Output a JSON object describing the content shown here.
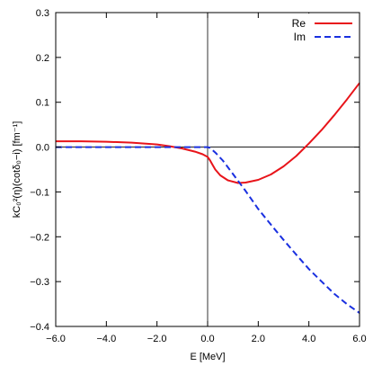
{
  "chart_data": {
    "type": "line",
    "xlabel": "E [MeV]",
    "ylabel": "kC₀²(η)(cotδ₀−i) [fm⁻¹]",
    "xlim": [
      -6.0,
      6.0
    ],
    "ylim": [
      -0.4,
      0.3
    ],
    "x_ticks": [
      -6.0,
      -4.0,
      -2.0,
      0.0,
      2.0,
      4.0,
      6.0
    ],
    "x_tick_labels": [
      "−6.0",
      "−4.0",
      "−2.0",
      "0.0",
      "2.0",
      "4.0",
      "6.0"
    ],
    "y_ticks": [
      -0.4,
      -0.3,
      -0.2,
      -0.1,
      0.0,
      0.1,
      0.2,
      0.3
    ],
    "y_tick_labels": [
      "−0.4",
      "−0.3",
      "−0.2",
      "−0.1",
      "0.0",
      "0.1",
      "0.2",
      "0.3"
    ],
    "zero_lines": true,
    "legend_position": "top-right",
    "series": [
      {
        "name": "Re",
        "color": "#e8141a",
        "style": "solid",
        "x": [
          -6.0,
          -5.0,
          -4.0,
          -3.0,
          -2.0,
          -1.5,
          -1.0,
          -0.5,
          -0.2,
          0.0,
          0.1,
          0.2,
          0.3,
          0.5,
          0.8,
          1.2,
          1.5,
          2.0,
          2.5,
          3.0,
          3.5,
          4.0,
          4.5,
          5.0,
          5.5,
          6.0
        ],
        "y": [
          0.013,
          0.013,
          0.012,
          0.01,
          0.006,
          0.002,
          -0.003,
          -0.01,
          -0.016,
          -0.022,
          -0.03,
          -0.04,
          -0.05,
          -0.063,
          -0.074,
          -0.08,
          -0.079,
          -0.073,
          -0.061,
          -0.043,
          -0.02,
          0.008,
          0.038,
          0.071,
          0.106,
          0.143
        ]
      },
      {
        "name": "Im",
        "color": "#1a30e0",
        "style": "dashed",
        "x": [
          -6.0,
          -4.0,
          -2.0,
          -1.0,
          0.0,
          0.1,
          0.3,
          0.6,
          1.0,
          1.5,
          2.0,
          2.5,
          3.0,
          3.5,
          4.0,
          4.5,
          5.0,
          5.5,
          6.0
        ],
        "y": [
          0.0,
          0.0,
          0.0,
          0.0,
          0.0,
          -0.002,
          -0.012,
          -0.03,
          -0.06,
          -0.098,
          -0.138,
          -0.173,
          -0.207,
          -0.24,
          -0.272,
          -0.3,
          -0.327,
          -0.35,
          -0.37
        ]
      }
    ]
  }
}
